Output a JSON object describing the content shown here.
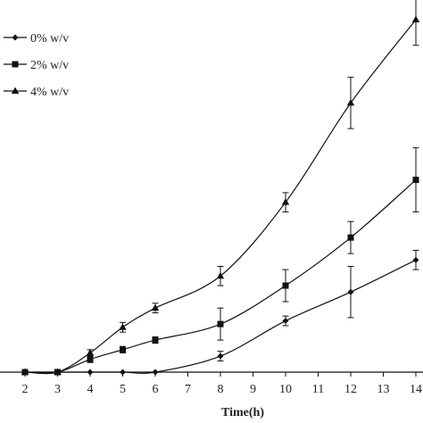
{
  "chart_data": {
    "type": "line",
    "xlabel": "Time(h)",
    "ylabel": "",
    "title": "",
    "xlim": [
      1,
      14.3
    ],
    "ylim": [
      0,
      1.1
    ],
    "x_ticks": [
      "2",
      "3",
      "4",
      "5",
      "6",
      "7",
      "8",
      "9",
      "10",
      "11",
      "12",
      "13",
      "14"
    ],
    "x": [
      2,
      3,
      4,
      5,
      6,
      8,
      10,
      12,
      14
    ],
    "grid": false,
    "legend_position": "top-left",
    "series": [
      {
        "name": "0% w/v",
        "marker": "diamond",
        "values": [
          0,
          0,
          0,
          0,
          0,
          0.05,
          0.16,
          0.25,
          0.35
        ],
        "errors": [
          0,
          0,
          0,
          0,
          0,
          0.015,
          0.015,
          0.08,
          0.03
        ]
      },
      {
        "name": "2% w/v",
        "marker": "square",
        "values": [
          0,
          0,
          0.04,
          0.07,
          0.1,
          0.15,
          0.27,
          0.42,
          0.6
        ],
        "errors": [
          0,
          0,
          0.01,
          0.01,
          0.01,
          0.05,
          0.05,
          0.05,
          0.1
        ]
      },
      {
        "name": "4% w/v",
        "marker": "triangle",
        "values": [
          0,
          0,
          0.06,
          0.14,
          0.2,
          0.3,
          0.53,
          0.84,
          1.1
        ],
        "errors": [
          0,
          0,
          0.01,
          0.015,
          0.015,
          0.03,
          0.03,
          0.08,
          0.08
        ]
      }
    ],
    "colors": {
      "ink": "#111111"
    }
  }
}
